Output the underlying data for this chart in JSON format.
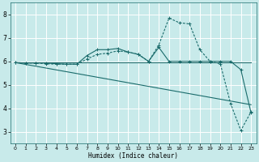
{
  "xlabel": "Humidex (Indice chaleur)",
  "xlim": [
    -0.5,
    23.5
  ],
  "ylim": [
    2.5,
    8.5
  ],
  "yticks": [
    3,
    4,
    5,
    6,
    7,
    8
  ],
  "xticks": [
    0,
    1,
    2,
    3,
    4,
    5,
    6,
    7,
    8,
    9,
    10,
    11,
    12,
    13,
    14,
    15,
    16,
    17,
    18,
    19,
    20,
    21,
    22,
    23
  ],
  "background_color": "#c8eaea",
  "grid_color": "#ffffff",
  "line_color": "#1a6b6b",
  "lines": [
    {
      "x": [
        0,
        1,
        2,
        3,
        4,
        5,
        6,
        7,
        8,
        9,
        10,
        11,
        12,
        13,
        14,
        15,
        16,
        17,
        18,
        19,
        20,
        21,
        22,
        23
      ],
      "y": [
        5.95,
        5.93,
        5.93,
        5.93,
        5.9,
        5.88,
        5.88,
        6.25,
        6.5,
        6.5,
        6.55,
        6.4,
        6.3,
        6.0,
        6.6,
        6.0,
        6.0,
        6.0,
        6.0,
        6.0,
        6.0,
        6.0,
        5.65,
        3.8
      ],
      "marker": true,
      "dashed": false
    },
    {
      "x": [
        0,
        1,
        2,
        3,
        4,
        5,
        6,
        7,
        8,
        9,
        10,
        11,
        12,
        13,
        14,
        15,
        16,
        17,
        18,
        19,
        20,
        21,
        22,
        23
      ],
      "y": [
        5.95,
        5.93,
        5.93,
        5.9,
        5.88,
        5.88,
        5.88,
        6.1,
        6.3,
        6.35,
        6.45,
        6.4,
        6.3,
        6.0,
        6.7,
        7.85,
        7.65,
        7.6,
        6.5,
        6.0,
        5.9,
        4.2,
        3.05,
        3.85
      ],
      "marker": true,
      "dashed": true
    },
    {
      "x": [
        0,
        23
      ],
      "y": [
        5.95,
        4.15
      ],
      "marker": false,
      "dashed": false
    },
    {
      "x": [
        0,
        23
      ],
      "y": [
        5.95,
        5.95
      ],
      "marker": false,
      "dashed": false
    }
  ]
}
